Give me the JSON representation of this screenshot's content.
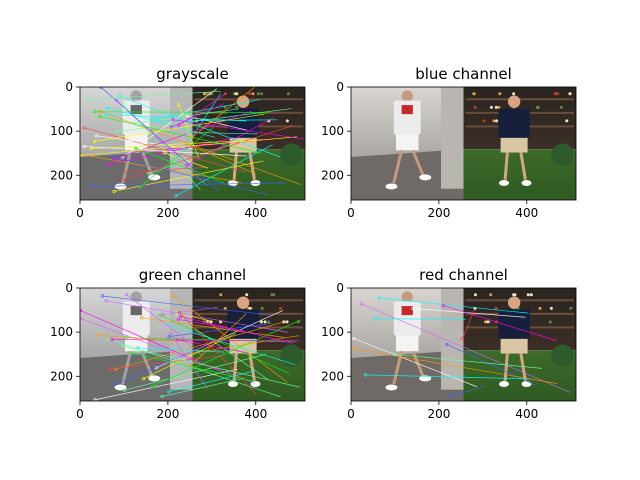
{
  "figure": {
    "background": "#ffffff"
  },
  "chart_data": [
    {
      "type": "image",
      "title": "grayscale",
      "xticks": [
        0,
        200,
        400
      ],
      "yticks": [
        0,
        100,
        200
      ],
      "xlim": [
        0,
        512
      ],
      "ylim": [
        256,
        0
      ],
      "images": [
        "left-photo-man-white-tshirt",
        "right-photo-man-navy-tshirt"
      ],
      "left_tint": "grayscale",
      "match_lines": 45
    },
    {
      "type": "image",
      "title": "blue channel",
      "xticks": [
        0,
        200,
        400
      ],
      "yticks": [
        0,
        100,
        200
      ],
      "xlim": [
        0,
        512
      ],
      "ylim": [
        256,
        0
      ],
      "images": [
        "left-photo-man-white-tshirt",
        "right-photo-man-navy-tshirt"
      ],
      "left_tint": "color",
      "match_lines": 0
    },
    {
      "type": "image",
      "title": "green channel",
      "xticks": [
        0,
        200,
        400
      ],
      "yticks": [
        0,
        100,
        200
      ],
      "xlim": [
        0,
        512
      ],
      "ylim": [
        256,
        0
      ],
      "images": [
        "left-photo-man-white-tshirt",
        "right-photo-man-navy-tshirt"
      ],
      "left_tint": "grayscale",
      "match_lines": 38
    },
    {
      "type": "image",
      "title": "red channel",
      "xticks": [
        0,
        200,
        400
      ],
      "yticks": [
        0,
        100,
        200
      ],
      "xlim": [
        0,
        512
      ],
      "ylim": [
        256,
        0
      ],
      "images": [
        "left-photo-man-white-tshirt",
        "right-photo-man-navy-tshirt"
      ],
      "left_tint": "color",
      "match_lines": 12
    }
  ]
}
